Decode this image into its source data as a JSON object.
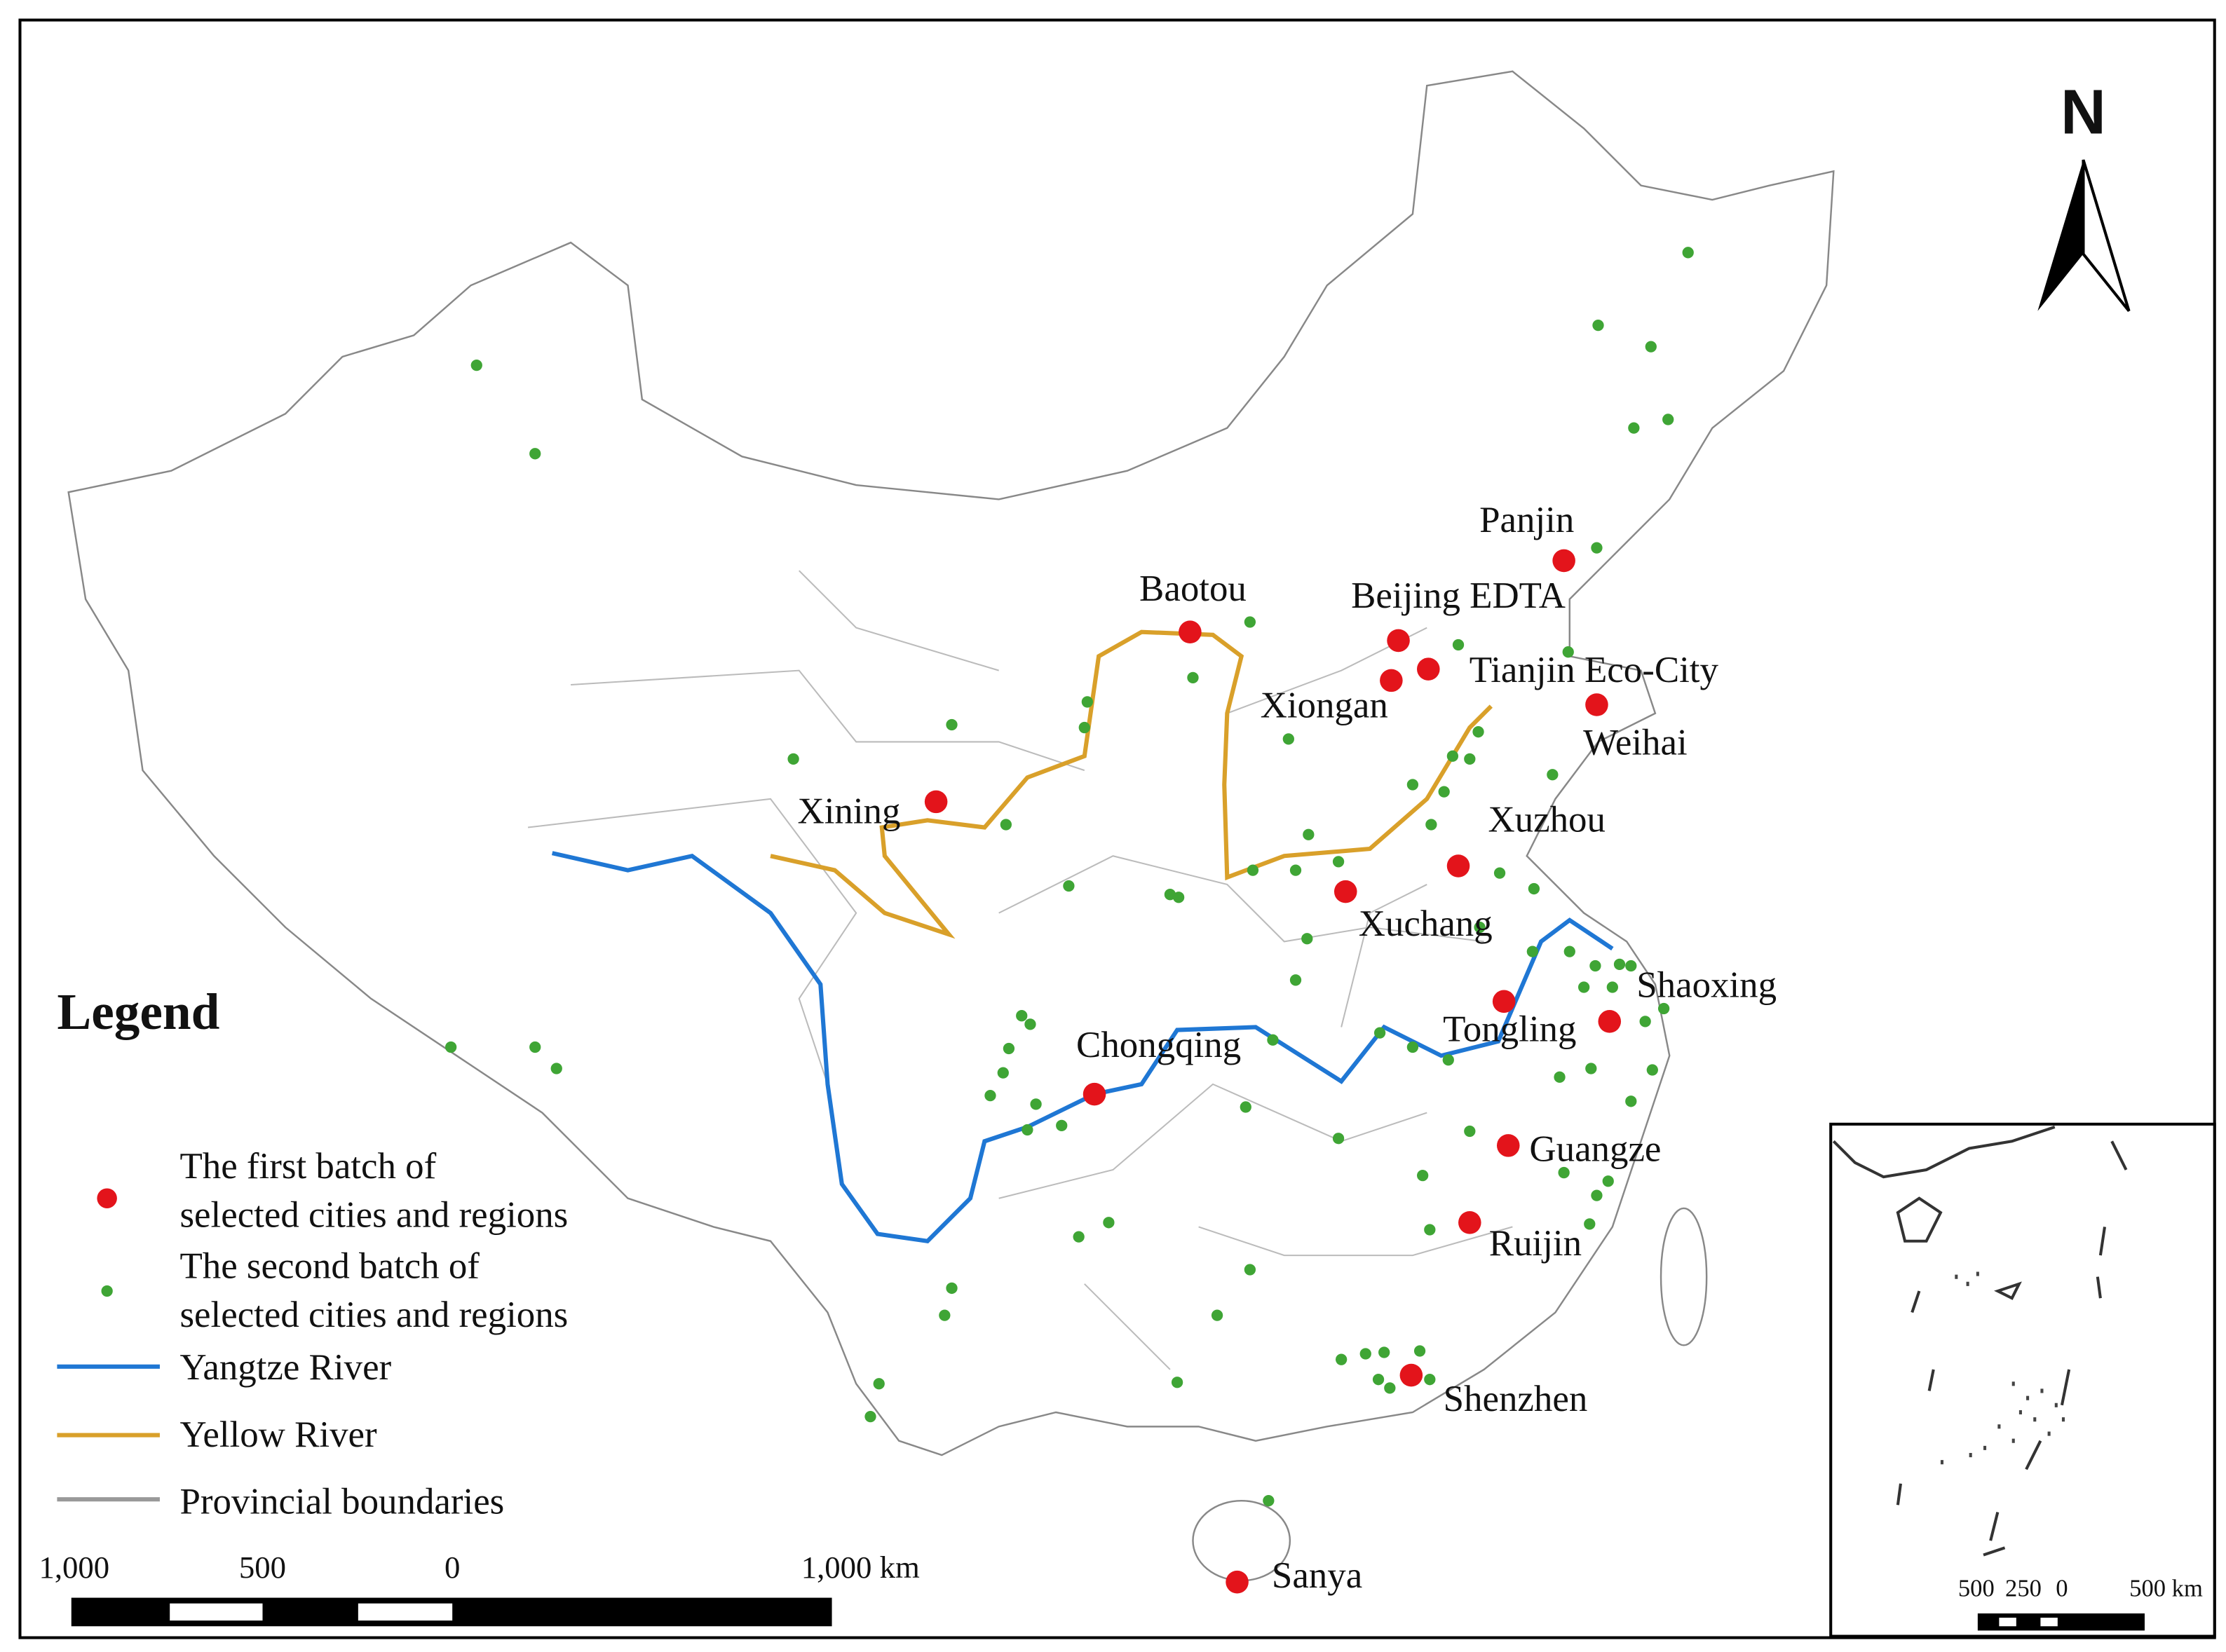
{
  "north": "N",
  "legend": {
    "title": "Legend",
    "items": [
      {
        "lines": [
          "The first batch of",
          "selected cities and regions"
        ]
      },
      {
        "lines": [
          "The second batch of",
          "selected cities and regions"
        ]
      },
      {
        "lines": [
          "Yangtze River"
        ]
      },
      {
        "lines": [
          "Yellow River"
        ]
      },
      {
        "lines": [
          "Provincial boundaries"
        ]
      }
    ]
  },
  "cities": [
    "Panjin",
    "Baotou",
    "Beijing EDTA",
    "Tianjin Eco-City",
    "Xiongan",
    "Weihai",
    "Xining",
    "Xuzhou",
    "Xuchang",
    "Shaoxing",
    "Tongling",
    "Chongqing",
    "Guangze",
    "Ruijin",
    "Shenzhen",
    "Sanya"
  ],
  "scale_bar": {
    "labels": [
      "1,000",
      "500",
      "0",
      "1,000 km"
    ]
  },
  "inset_scale_bar": {
    "labels": [
      "500",
      "250",
      "0",
      "500 km"
    ]
  }
}
